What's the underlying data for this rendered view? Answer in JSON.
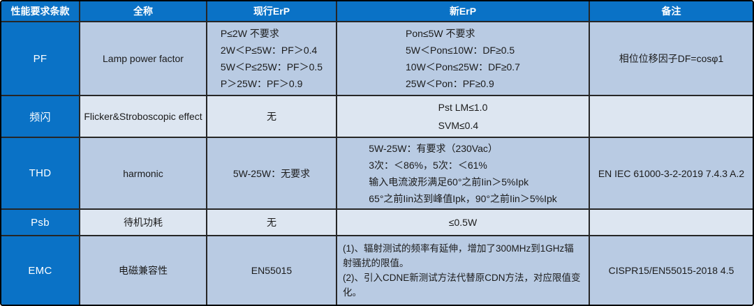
{
  "table": {
    "headers": {
      "clause": "性能要求条款",
      "full_name": "全称",
      "current_erp": "现行ErP",
      "new_erp": "新ErP",
      "remark": "备注"
    },
    "rows": [
      {
        "clause": "PF",
        "full_name": "Lamp power factor",
        "current_erp": "P≤2W 不要求\n2W＜P≤5W：PF＞0.4\n5W＜P≤25W：PF＞0.5\nP＞25W：PF＞0.9",
        "new_erp": "Pon≤5W 不要求\n5W＜Pon≤10W：DF≥0.5\n10W＜Pon≤25W：DF≥0.7\n25W＜Pon：PF≥0.9",
        "remark": "相位位移因子DF=cosφ1"
      },
      {
        "clause": "频闪",
        "full_name": "Flicker&Stroboscopic effect",
        "current_erp": "无",
        "new_erp": "Pst LM≤1.0\nSVM≤0.4",
        "remark": ""
      },
      {
        "clause": "THD",
        "full_name": "harmonic",
        "current_erp": "5W-25W：无要求",
        "new_erp": "5W-25W：有要求（230Vac）\n3次：＜86%，5次：＜61%\n输入电流波形满足60°之前Iin＞5%Ipk\n65°之前Iin达到峰值Ipk，90°之前Iin＞5%Ipk",
        "remark": "EN IEC 61000-3-2-2019 7.4.3 A.2"
      },
      {
        "clause": "Psb",
        "full_name": "待机功耗",
        "current_erp": "无",
        "new_erp": "≤0.5W",
        "remark": ""
      },
      {
        "clause": "EMC",
        "full_name": "电磁兼容性",
        "current_erp": "EN55015",
        "new_erp": "(1)、辐射测试的频率有延伸，增加了300MHz到1GHz辐射骚扰的限值。\n(2)、引入CDNE新测试方法代替原CDN方法，对应限值变化。",
        "remark": "CISPR15/EN55015-2018 4.5"
      }
    ]
  },
  "colors": {
    "header_blue": "#0A72C6",
    "row_shade_medium": "#B9CBE3",
    "row_shade_light": "#DDE6F1",
    "grid_line": "#262626",
    "header_text": "#FFFFFF",
    "body_text": "#1B1B1B"
  }
}
